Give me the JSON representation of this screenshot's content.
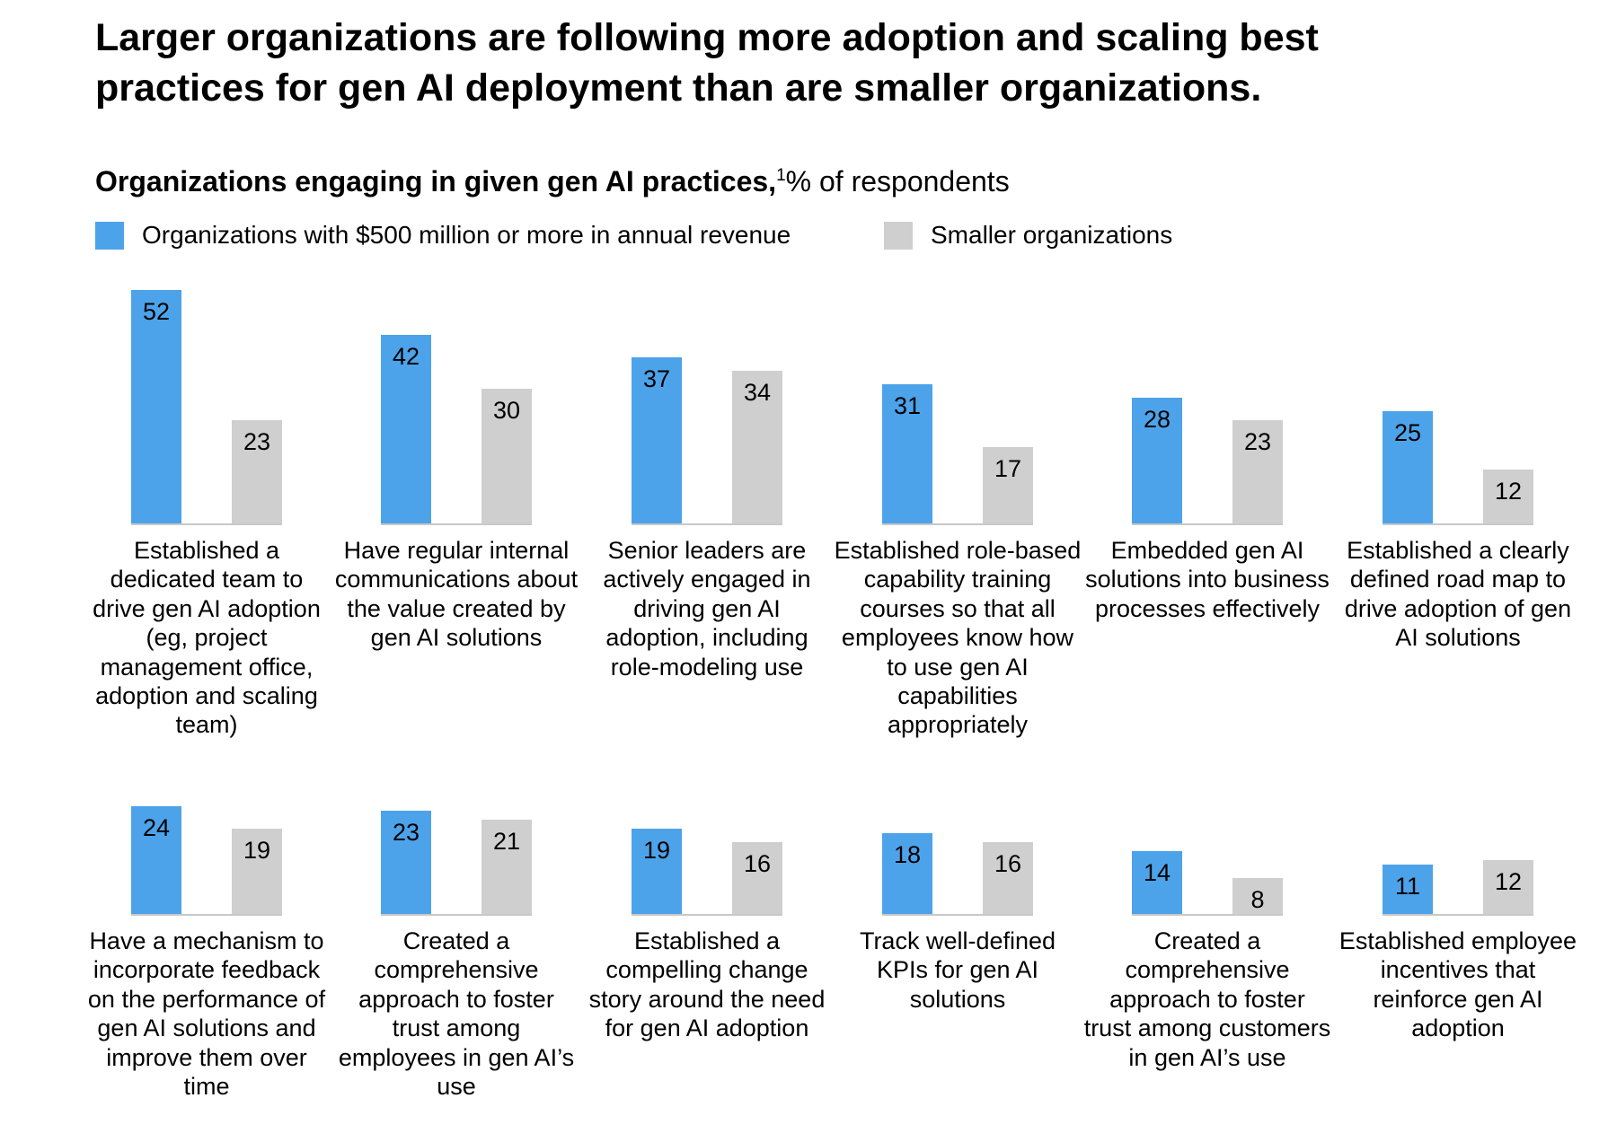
{
  "title": "Larger organizations are following more adoption and scaling best practices for gen AI deployment than are smaller organizations.",
  "subtitle": {
    "bold": "Organizations engaging in given gen AI practices,",
    "footnote": "1",
    "regular": "% of respondents"
  },
  "colors": {
    "large": "#4da3ea",
    "small": "#cfcfcf",
    "baseline": "#c8c8c8"
  },
  "legend": {
    "large": "Organizations with $500 million or more in annual revenue",
    "small": "Smaller organizations"
  },
  "chart_data": {
    "type": "bar",
    "title": "Organizations engaging in given gen AI practices, % of respondents",
    "ylabel": "% of respondents",
    "ylim": [
      0,
      52
    ],
    "series": [
      {
        "name": "Organizations with $500 million or more in annual revenue",
        "values": [
          52,
          42,
          37,
          31,
          28,
          25,
          24,
          23,
          19,
          18,
          14,
          11
        ]
      },
      {
        "name": "Smaller organizations",
        "values": [
          23,
          30,
          34,
          17,
          23,
          12,
          19,
          21,
          16,
          16,
          8,
          12
        ]
      }
    ],
    "categories": [
      "Established a dedicated team to drive gen AI adoption (eg, project management office, adoption and scaling team)",
      "Have regular internal communications about the value created by gen AI solutions",
      "Senior leaders are actively engaged in driving gen AI adoption, including role-modeling use",
      "Established role-based capability training courses so that all employees know how to use gen AI capabilities appropriately",
      "Embedded gen AI solutions into business processes effectively",
      "Established a clearly defined road map to drive adoption of gen AI solutions",
      "Have a mechanism to incorporate feedback on the performance of gen AI solutions and improve them over time",
      "Created a comprehensive approach to foster trust among employees in gen AI’s use",
      "Established a compelling change story around the need for gen AI adoption",
      "Track well-defined KPIs for gen AI solutions",
      "Created a comprehensive approach to foster trust among customers in gen AI’s use",
      "Established employee incentives that reinforce gen AI adoption"
    ]
  }
}
